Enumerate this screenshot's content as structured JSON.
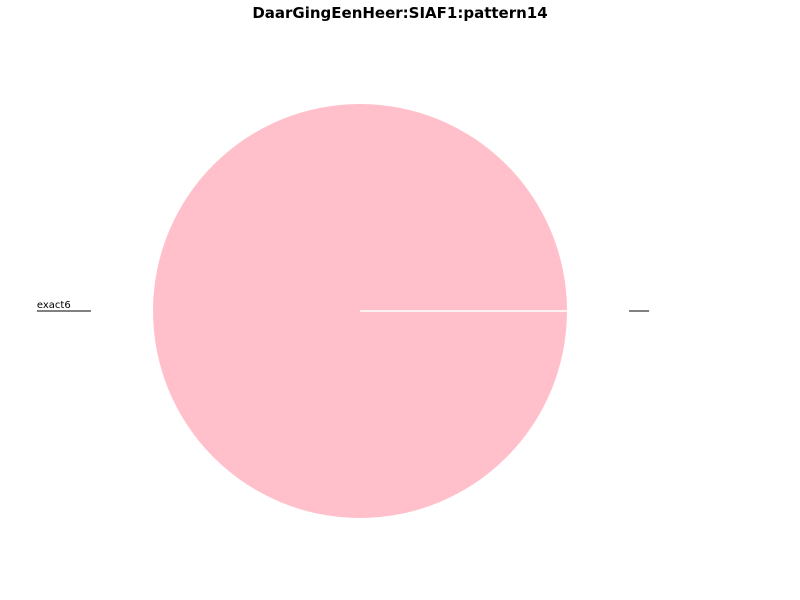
{
  "chart_data": {
    "type": "pie",
    "title": "DaarGingEenHeer:SIAF1:pattern14",
    "slices": [
      {
        "label": "exact6",
        "value": 100,
        "color": "#ffc0cb"
      },
      {
        "label": "",
        "value": 0,
        "color": "#ffc0cb"
      }
    ],
    "start_angle_deg": 0,
    "direction": "counterclockwise",
    "wedge_edge_color": "#ffffff",
    "label_style": "underlined"
  }
}
